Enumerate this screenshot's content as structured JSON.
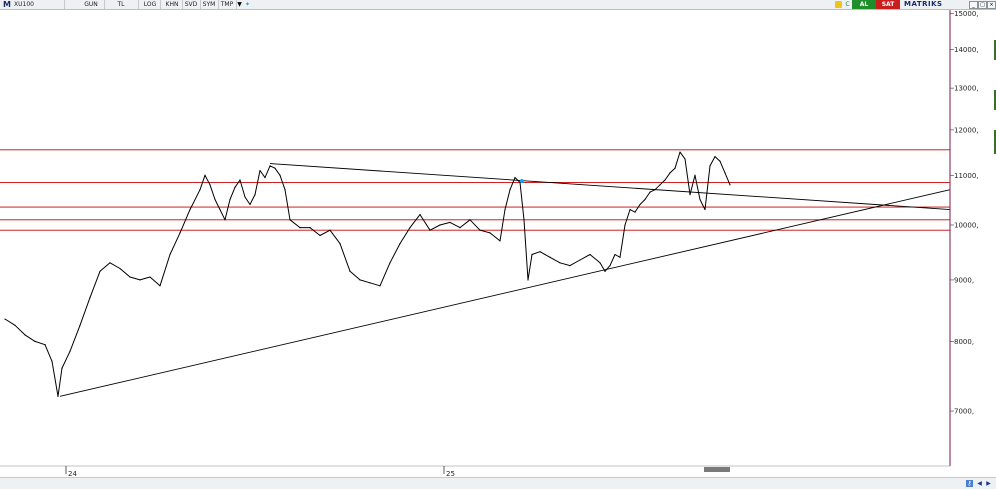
{
  "toolbar": {
    "logo": "M",
    "symbol": "XU100",
    "period": "GUN",
    "currency": "TL",
    "log": "LOG",
    "khn": "KHN",
    "svd": "SVD",
    "sym": "SYM",
    "tmp": "TMP",
    "al_label": "AL",
    "sat_label": "SAT",
    "brand": "MATRIKS",
    "icons": [
      "dropdown-arrow-icon",
      "twitter-bird-icon",
      "lock-icon",
      "refresh-icon",
      "window-close-icon"
    ]
  },
  "colors": {
    "price": "#000000",
    "trendline": "#000000",
    "support_resistance": "#cc0000",
    "axis_line": "#7a1a4a",
    "al": "#1e8f2a",
    "sat": "#c81e1e",
    "highlight": "#00aaff"
  },
  "chart_data": {
    "type": "line",
    "symbol": "XU100",
    "y_scale": "log",
    "ylim": [
      6300,
      15100
    ],
    "y_ticks": [
      15000,
      14000,
      13000,
      12000,
      11000,
      10000,
      9000,
      8000,
      7000
    ],
    "y_tick_labels": [
      "15000,",
      "14000,",
      "13000,",
      "12000,",
      "11000,",
      "10000,",
      "9000,",
      "8000,",
      "7000,"
    ],
    "x_tick_labels": [
      "24",
      "25"
    ],
    "x_tick_bars": [
      66,
      444
    ],
    "xlim": [
      0,
      950
    ],
    "grid": false,
    "series": [
      {
        "x": [
          5,
          15,
          25,
          35,
          45,
          52,
          58,
          62,
          70,
          80,
          90,
          100,
          110,
          120,
          130,
          140,
          150,
          160,
          170,
          180,
          190,
          200,
          205,
          210,
          215,
          220,
          225,
          230,
          235,
          240,
          245,
          250,
          255,
          260,
          265,
          270,
          275,
          280,
          285,
          290,
          300,
          310,
          320,
          330,
          340,
          350,
          360,
          370,
          380,
          390,
          400,
          410,
          420,
          430,
          440,
          450,
          460,
          470,
          480,
          490,
          500,
          505,
          510,
          515,
          520,
          524,
          528,
          532,
          540,
          550,
          560,
          570,
          580,
          590,
          600,
          605,
          610,
          615,
          620,
          625,
          630,
          635,
          640,
          645,
          650,
          655,
          660,
          665,
          670,
          675,
          680,
          685,
          690,
          695,
          700,
          705,
          710,
          715,
          720,
          725,
          730
        ],
        "y": [
          8350,
          8250,
          8100,
          8000,
          7950,
          7700,
          7200,
          7600,
          7850,
          8250,
          8700,
          9150,
          9300,
          9200,
          9050,
          9000,
          9050,
          8900,
          9450,
          9850,
          10300,
          10700,
          11000,
          10800,
          10500,
          10300,
          10100,
          10500,
          10750,
          10900,
          10550,
          10400,
          10600,
          11100,
          10950,
          11200,
          11150,
          11000,
          10700,
          10100,
          9950,
          9950,
          9800,
          9900,
          9650,
          9150,
          9000,
          8950,
          8900,
          9300,
          9650,
          9950,
          10200,
          9900,
          10000,
          10050,
          9950,
          10100,
          9900,
          9850,
          9700,
          10300,
          10700,
          10950,
          10850,
          10100,
          9000,
          9450,
          9500,
          9400,
          9300,
          9250,
          9350,
          9450,
          9300,
          9150,
          9250,
          9450,
          9400,
          10000,
          10300,
          10250,
          10400,
          10500,
          10650,
          10700,
          10800,
          10900,
          11050,
          11150,
          11500,
          11350,
          10600,
          11000,
          10500,
          10300,
          11200,
          11400,
          11300,
          11050,
          10800
        ]
      }
    ],
    "horizontal_levels": [
      11550,
      10850,
      10350,
      10100,
      9900
    ],
    "trendlines": [
      {
        "x1": 60,
        "y1": 7200,
        "x2": 950,
        "y2": 10700
      },
      {
        "x1": 270,
        "y1": 11250,
        "x2": 950,
        "y2": 10300
      }
    ],
    "marker": {
      "x": 522,
      "y": 10880
    }
  },
  "navigation": {
    "buttons": [
      "lock-icon",
      "scroll-left-icon",
      "scroll-right-icon"
    ]
  }
}
